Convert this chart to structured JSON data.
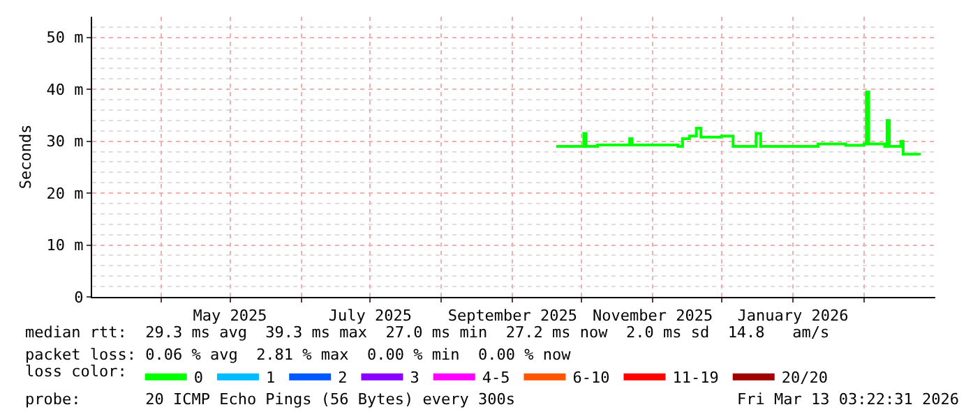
{
  "chart_data": {
    "type": "step",
    "ylabel": "Seconds",
    "x": [
      "2025-09-20",
      "2025-10-01",
      "2025-10-02",
      "2025-10-03",
      "2025-10-08",
      "2025-10-21",
      "2025-10-22",
      "2025-10-23",
      "2025-11-12",
      "2025-11-14",
      "2025-11-17",
      "2025-11-20",
      "2025-11-22",
      "2025-12-01",
      "2025-12-06",
      "2025-12-16",
      "2025-12-18",
      "2026-01-03",
      "2026-01-12",
      "2026-01-24",
      "2026-02-01",
      "2026-02-02",
      "2026-02-03",
      "2026-02-10",
      "2026-02-11",
      "2026-02-12",
      "2026-02-16",
      "2026-02-17",
      "2026-02-18",
      "2026-02-25"
    ],
    "series": [
      {
        "name": "0",
        "color": "#00ff00",
        "values": [
          29,
          29,
          31.5,
          29,
          29.3,
          29.3,
          30.5,
          29.3,
          29,
          30.5,
          31,
          32.5,
          30.8,
          31,
          29,
          31.5,
          29,
          29,
          29.5,
          29.2,
          29.5,
          39.5,
          29.5,
          29,
          34,
          29,
          29,
          30,
          27.5,
          27.3
        ]
      },
      {
        "name": "1",
        "color": "#00bbff",
        "values": [
          null,
          null,
          null,
          null,
          null,
          null,
          null,
          null,
          null,
          null,
          null,
          null,
          null,
          null,
          null,
          null,
          null,
          null,
          null,
          null,
          null,
          null,
          null,
          null,
          null,
          null,
          null,
          null,
          null,
          null
        ]
      },
      {
        "name": "2",
        "color": "#0059ff",
        "values": [
          null,
          null,
          null,
          null,
          null,
          null,
          null,
          null,
          null,
          null,
          null,
          null,
          null,
          null,
          null,
          null,
          null,
          null,
          null,
          null,
          null,
          null,
          null,
          null,
          null,
          null,
          null,
          null,
          null,
          null
        ]
      },
      {
        "name": "3",
        "color": "#8800ff",
        "values": [
          null,
          null,
          null,
          null,
          null,
          null,
          null,
          null,
          null,
          null,
          null,
          null,
          null,
          null,
          null,
          null,
          null,
          null,
          null,
          null,
          null,
          null,
          null,
          null,
          null,
          null,
          null,
          null,
          null,
          null
        ]
      },
      {
        "name": "4-5",
        "color": "#ff00ff",
        "values": [
          null,
          null,
          null,
          null,
          null,
          null,
          null,
          null,
          null,
          null,
          null,
          null,
          null,
          null,
          null,
          null,
          null,
          null,
          null,
          null,
          null,
          null,
          null,
          null,
          null,
          null,
          null,
          null,
          null,
          null
        ]
      },
      {
        "name": "6-10",
        "color": "#ff5500",
        "values": [
          null,
          null,
          null,
          null,
          null,
          null,
          null,
          null,
          null,
          null,
          null,
          null,
          null,
          null,
          null,
          null,
          null,
          null,
          null,
          null,
          null,
          null,
          null,
          null,
          null,
          null,
          null,
          null,
          null,
          null
        ]
      },
      {
        "name": "11-19",
        "color": "#ff0000",
        "values": [
          null,
          null,
          null,
          null,
          null,
          null,
          null,
          null,
          null,
          null,
          null,
          null,
          null,
          null,
          null,
          null,
          null,
          null,
          null,
          null,
          null,
          null,
          null,
          null,
          null,
          null,
          null,
          null,
          null,
          null
        ]
      },
      {
        "name": "20/20",
        "color": "#a10000",
        "values": [
          null,
          null,
          null,
          null,
          null,
          null,
          null,
          null,
          null,
          null,
          null,
          null,
          null,
          null,
          null,
          null,
          null,
          null,
          null,
          null,
          null,
          null,
          null,
          null,
          null,
          null,
          null,
          null,
          null,
          null
        ]
      }
    ],
    "xlim": [
      "2025-03-02",
      "2026-03-04"
    ],
    "xticks": [
      {
        "value": "2025-04-01",
        "label": null
      },
      {
        "value": "2025-05-01",
        "label": "May 2025"
      },
      {
        "value": "2025-06-01",
        "label": null
      },
      {
        "value": "2025-07-01",
        "label": "July 2025"
      },
      {
        "value": "2025-08-01",
        "label": null
      },
      {
        "value": "2025-09-01",
        "label": "September 2025"
      },
      {
        "value": "2025-10-01",
        "label": null
      },
      {
        "value": "2025-11-01",
        "label": "November 2025"
      },
      {
        "value": "2025-12-01",
        "label": null
      },
      {
        "value": "2026-01-01",
        "label": "January 2026"
      },
      {
        "value": "2026-02-01",
        "label": null
      }
    ],
    "ylim": [
      0,
      54
    ],
    "yticks": [
      0,
      {
        "value": 10,
        "label": "10 m"
      },
      {
        "value": 20,
        "label": "20 m"
      },
      {
        "value": 30,
        "label": "30 m"
      },
      {
        "value": 40,
        "label": "40 m"
      },
      {
        "value": 50,
        "label": "50 m"
      }
    ],
    "grid": true,
    "legend": "bottom",
    "legend_title": "loss color:",
    "annotations": [
      "median rtt:  29.3 ms avg  39.3 ms max  27.0 ms min  27.2 ms now  2.0 ms sd  14.8   am/s",
      "packet loss: 0.06 % avg  2.81 % max  0.00 % min  0.00 % now",
      "probe:       20 ICMP Echo Pings (56 Bytes) every 300s",
      "Fri Mar 13 03:22:31 2026"
    ]
  }
}
